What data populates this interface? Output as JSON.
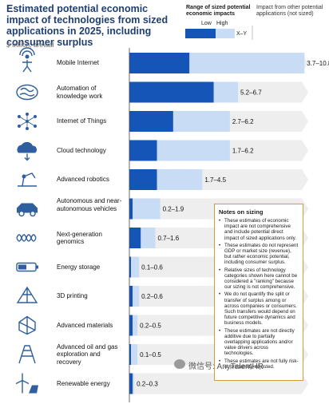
{
  "header": {
    "title": "Estimated potential economic impact of technologies from sized applications in 2025, including consumer surplus",
    "unit": "$ trillion, annual"
  },
  "legend": {
    "title": "Range of sized potential economic impacts",
    "low": "Low",
    "high": "High",
    "range_label": "X–Y",
    "other_label": "Impact from other potential applications (not sized)"
  },
  "colors": {
    "low": "#1655b8",
    "high": "#c9dcf6",
    "other": "#eeeeee",
    "notes_border": "#d79a3a",
    "title": "#1f3f72"
  },
  "chart_data": {
    "type": "bar",
    "categories": [
      "Mobile Internet",
      "Automation of knowledge work",
      "Internet of Things",
      "Cloud technology",
      "Advanced robotics",
      "Autonomous and near-autonomous vehicles",
      "Next-generation genomics",
      "Energy storage",
      "3D printing",
      "Advanced materials",
      "Advanced oil and gas exploration and recovery",
      "Renewable energy"
    ],
    "series": [
      {
        "name": "Low",
        "values": [
          3.7,
          5.2,
          2.7,
          1.7,
          1.7,
          0.2,
          0.7,
          0.1,
          0.2,
          0.2,
          0.1,
          0.2
        ]
      },
      {
        "name": "High",
        "values": [
          10.8,
          6.7,
          6.2,
          6.2,
          4.5,
          1.9,
          1.6,
          0.6,
          0.6,
          0.5,
          0.5,
          0.3
        ]
      }
    ],
    "range_labels": [
      "3.7–10.8",
      "5.2–6.7",
      "2.7–6.2",
      "1.7–6.2",
      "1.7–4.5",
      "0.2–1.9",
      "0.7–1.6",
      "0.1–0.6",
      "0.2–0.6",
      "0.2–0.5",
      "0.1–0.5",
      "0.2–0.3"
    ],
    "icons": [
      "person-signal-icon",
      "brain-icon",
      "network-nodes-icon",
      "cloud-icon",
      "robot-arm-icon",
      "car-icon",
      "dna-icon",
      "battery-icon",
      "printer-3d-icon",
      "crystal-icon",
      "oil-rig-icon",
      "wind-solar-icon"
    ],
    "grid": false,
    "legend_position": "top-right"
  },
  "notes": {
    "title": "Notes on sizing",
    "items": [
      "These estimates of economic impact are not comprehensive and include potential direct impact of sized applications only.",
      "These estimates do not represent GDP or market size (revenue), but rather economic potential, including consumer surplus.",
      "Relative sizes of technology categories shown here cannot be considered a \"ranking\" because our sizing is not comprehensive.",
      "We do not quantify the split or transfer of surplus among or across companies or consumers. Such transfers would depend on future competitive dynamics and business models.",
      "These estimates are not directly additive due to partially overlapping applications and/or value drivers across technologies.",
      "These estimates are not fully risk- or probability-adjusted."
    ]
  },
  "watermark": "微信号: AnyTalentHR"
}
